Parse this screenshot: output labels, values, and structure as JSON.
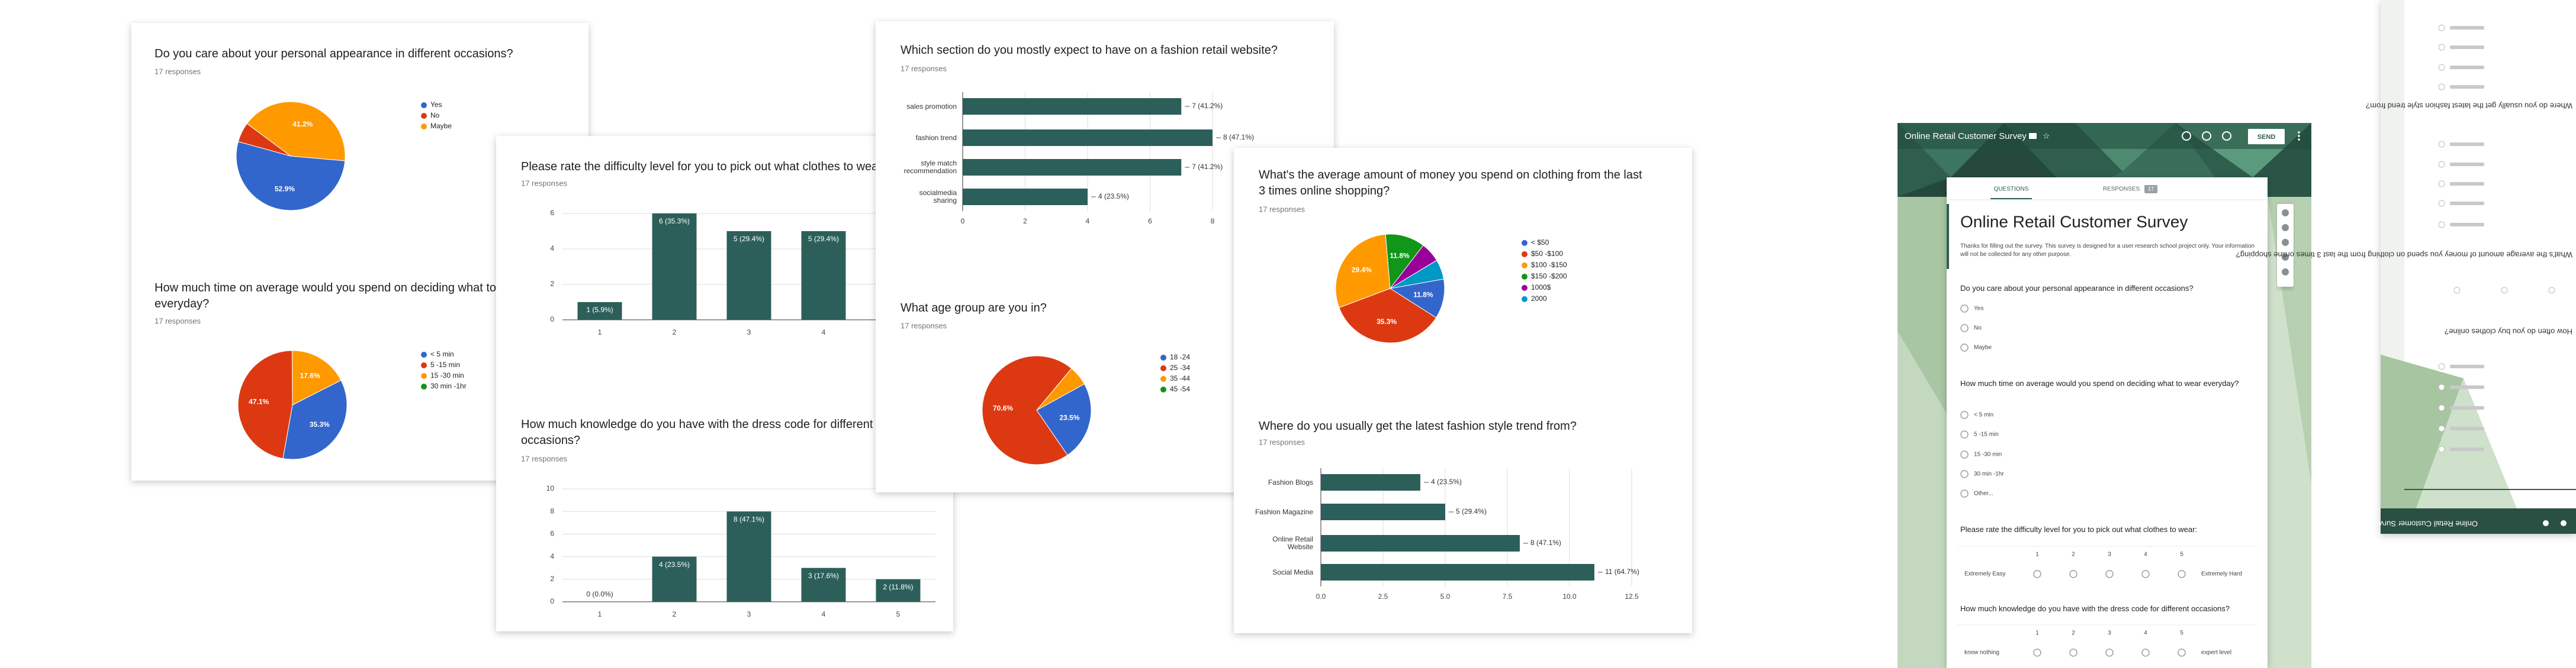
{
  "chart_data": [
    {
      "type": "pie",
      "title": "Do you care about your personal appearance in different occasions?",
      "subtitle": "17 responses",
      "categories": [
        "Yes",
        "No",
        "Maybe"
      ],
      "values": [
        52.9,
        5.9,
        41.2
      ],
      "value_labels": [
        "52.9%",
        null,
        "41.2%"
      ],
      "colors": [
        "#3366cc",
        "#dc3912",
        "#ff9900"
      ]
    },
    {
      "type": "pie",
      "title": "How much time on average would you spend on deciding what to wear everyday?",
      "subtitle": "17 responses",
      "categories": [
        "< 5 min",
        "5 -15 min",
        "15 -30 min",
        "30 min -1hr"
      ],
      "values": [
        35.3,
        47.1,
        17.6,
        0
      ],
      "value_labels": [
        "35.3%",
        "47.1%",
        "17.6%",
        null
      ],
      "colors": [
        "#3366cc",
        "#dc3912",
        "#ff9900",
        "#109618"
      ]
    },
    {
      "type": "vbar",
      "title": "Please rate the difficulty level for you to pick out what clothes to wear:",
      "subtitle": "17 responses",
      "categories": [
        1,
        2,
        3,
        4
      ],
      "values": [
        1,
        6,
        5,
        5
      ],
      "value_labels": [
        "1 (5.9%)",
        "6 (35.3%)",
        "5 (29.4%)",
        "5 (29.4%)"
      ],
      "color": "#2c5f5a",
      "ylim": [
        0,
        6
      ],
      "yticks": [
        0,
        2,
        4,
        6
      ],
      "grid": true
    },
    {
      "type": "vbar",
      "title": "How much knowledge do you have with the dress code for different occasions?",
      "subtitle": "17 responses",
      "categories": [
        1,
        2,
        3,
        4,
        5
      ],
      "values": [
        0,
        4,
        8,
        3,
        2
      ],
      "value_labels": [
        "0 (0.0%)",
        "4 (23.5%)",
        "8 (47.1%)",
        "3 (17.6%)",
        "2 (11.8%)"
      ],
      "color": "#2c5f5a",
      "ylim": [
        0,
        10
      ],
      "yticks": [
        0,
        2,
        4,
        6,
        8,
        10
      ],
      "grid": true
    },
    {
      "type": "hbar",
      "title": "Which section do you mostly expect to have on a fashion retail website?",
      "subtitle": "17 responses",
      "categories": [
        "sales promotion",
        "fashion trend",
        "style match recommendation",
        "socialmedia sharing"
      ],
      "values": [
        7,
        8,
        7,
        4
      ],
      "value_labels": [
        "7 (41.2%)",
        "8 (47.1%)",
        "7 (41.2%)",
        "4 (23.5%)"
      ],
      "color": "#2c5f5a",
      "xlim": [
        0,
        8
      ],
      "xticks": [
        0,
        2,
        4,
        6,
        8
      ],
      "grid": true
    },
    {
      "type": "pie",
      "title": "What age group are you in?",
      "subtitle": "17 responses",
      "categories": [
        "18 -24",
        "25 -34",
        "35 -44",
        "45 -54"
      ],
      "values": [
        23.5,
        70.6,
        5.9,
        0
      ],
      "value_labels": [
        "23.5%",
        "70.6%",
        null,
        null
      ],
      "colors": [
        "#3366cc",
        "#dc3912",
        "#ff9900",
        "#109618"
      ]
    },
    {
      "type": "pie",
      "title": "What's the average amount of money you spend on clothing from the last 3 times online shopping?",
      "subtitle": "17 responses",
      "categories": [
        "< $50",
        "$50 -$100",
        "$100 -$150",
        "$150 -$200",
        "1000$",
        "2000"
      ],
      "values": [
        11.8,
        35.3,
        29.4,
        11.8,
        5.9,
        5.9
      ],
      "value_labels": [
        "11.8%",
        "35.3%",
        "29.4%",
        "11.8%",
        null,
        null
      ],
      "colors": [
        "#3366cc",
        "#dc3912",
        "#ff9900",
        "#109618",
        "#990099",
        "#0099c6"
      ]
    },
    {
      "type": "hbar",
      "title": "Where do you usually get the latest fashion style trend from?",
      "subtitle": "17 responses",
      "categories": [
        "Fashion Blogs",
        "Fashion Magazine",
        "Online Retail Website",
        "Social Media"
      ],
      "values": [
        4,
        5,
        8,
        11
      ],
      "value_labels": [
        "4 (23.5%)",
        "5 (29.4%)",
        "8 (47.1%)",
        "11 (64.7%)"
      ],
      "color": "#2c5f5a",
      "xlim": [
        0,
        12.5
      ],
      "xticks": [
        {
          "value": 0,
          "label": "0.0"
        },
        2.5,
        {
          "value": 5,
          "label": "5.0"
        },
        7.5,
        {
          "value": 10,
          "label": "10.0"
        },
        12.5
      ],
      "grid": true
    }
  ],
  "form": {
    "header_title": "Online Retail Customer Survey",
    "send": "SEND",
    "tabs": [
      "QUESTIONS",
      "RESPONSES"
    ],
    "badge": 17,
    "title": "Online Retail Customer Survey",
    "description": "Thanks for filling out the survey. This survey is designed for a user research school project only. Your information will not be collected for any other purpose.",
    "questions": [
      {
        "text": "Do you care about your personal appearance in different occasions?",
        "options": [
          "Yes",
          "No",
          "Maybe"
        ]
      },
      {
        "text": "How much time on average would you spend on  deciding what to wear everyday?",
        "options": [
          "< 5 min",
          "5 -15 min",
          "15 -30 min",
          "30 min -1hr",
          "Other..."
        ]
      },
      {
        "text": "Please rate the difficulty level for you to pick out what clothes to wear:",
        "scale": [
          1,
          2,
          3,
          4,
          5
        ],
        "low": "Extremely Easy",
        "high": "Extremely Hard"
      },
      {
        "text": "How much knowledge do you have with the dress code for different occasions?",
        "scale": [
          1,
          2,
          3,
          4,
          5
        ],
        "low": "know nothing",
        "high": "expert level"
      }
    ]
  },
  "mirror": {
    "footer_title": "Online Retail Customer Survey",
    "questions": [
      "Where do you usually get the latest fashion style trend from?",
      "What's the average amount of money you spend on clothing from the last 3 times online shopping?",
      "How often do you buy clothes online?"
    ]
  }
}
